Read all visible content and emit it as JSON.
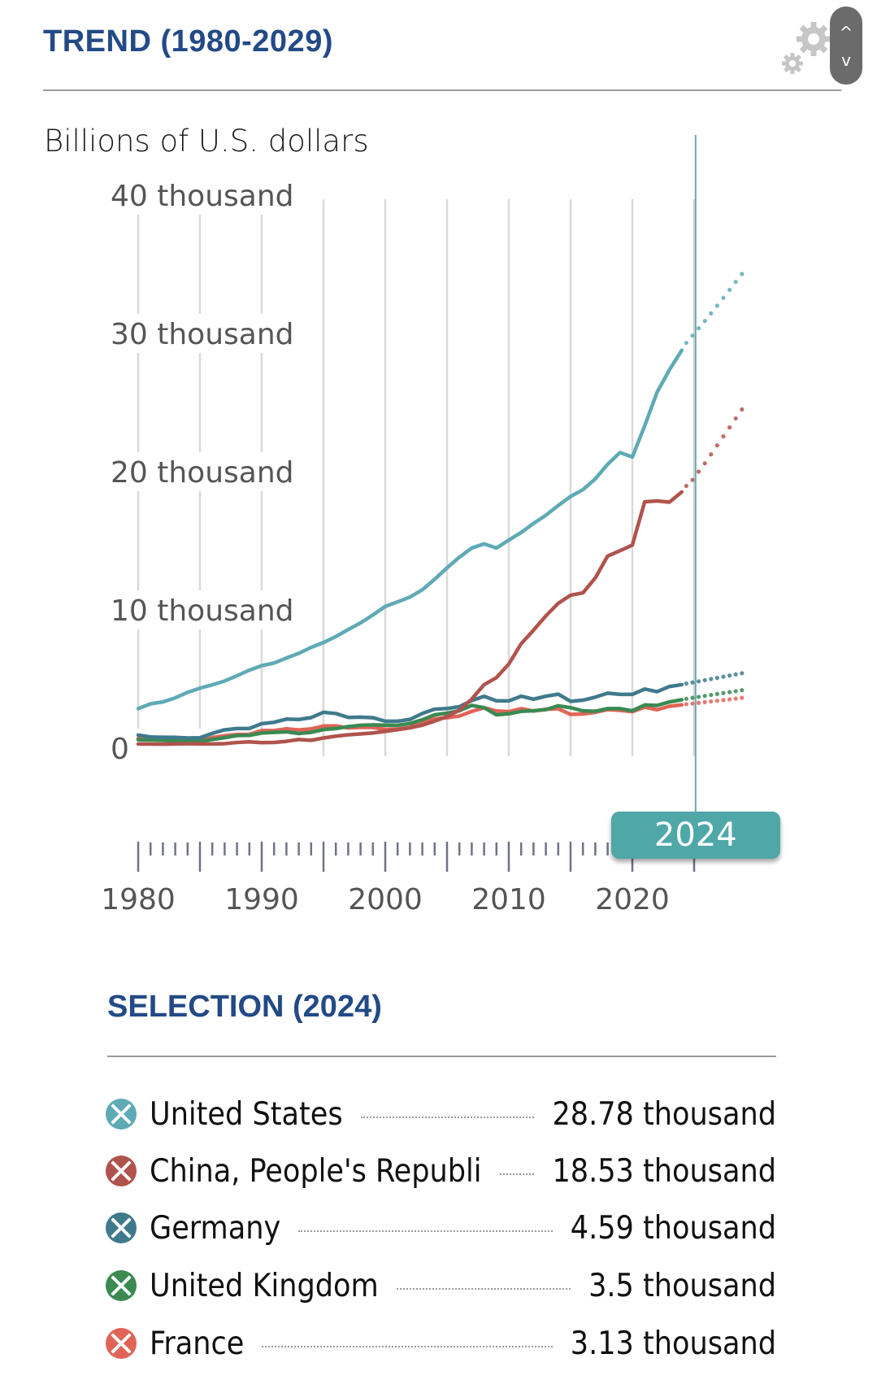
{
  "header": {
    "title": "TREND (1980-2029)",
    "settings_icon": "gears-icon",
    "scroll_up_icon": "chevron-up-icon",
    "scroll_down_icon": "chevron-down-icon",
    "scroll_up_glyph": "^",
    "scroll_down_glyph": "v"
  },
  "chart_data": {
    "type": "line",
    "title": "TREND (1980-2029)",
    "ylabel": "Billions of U.S. dollars",
    "xlabel": "",
    "ylim": [
      0,
      40000
    ],
    "xlim": [
      1980,
      2029
    ],
    "y_ticks": [
      {
        "value": 0,
        "label": "0"
      },
      {
        "value": 10000,
        "label": "10 thousand"
      },
      {
        "value": 20000,
        "label": "20 thousand"
      },
      {
        "value": 30000,
        "label": "30 thousand"
      },
      {
        "value": 40000,
        "label": "40 thousand"
      }
    ],
    "x_ticks": [
      {
        "value": 1980,
        "label": "1980"
      },
      {
        "value": 1990,
        "label": "1990"
      },
      {
        "value": 2000,
        "label": "2000"
      },
      {
        "value": 2010,
        "label": "2010"
      },
      {
        "value": 2020,
        "label": "2020"
      }
    ],
    "grid": "vertical",
    "selected_year": 2024,
    "selected_year_label": "2024",
    "projection_start": 2024,
    "x": [
      1980,
      1981,
      1982,
      1983,
      1984,
      1985,
      1986,
      1987,
      1988,
      1989,
      1990,
      1991,
      1992,
      1993,
      1994,
      1995,
      1996,
      1997,
      1998,
      1999,
      2000,
      2001,
      2002,
      2003,
      2004,
      2005,
      2006,
      2007,
      2008,
      2009,
      2010,
      2011,
      2012,
      2013,
      2014,
      2015,
      2016,
      2017,
      2018,
      2019,
      2020,
      2021,
      2022,
      2023,
      2024,
      2025,
      2026,
      2027,
      2028,
      2029
    ],
    "series": [
      {
        "name": "United States",
        "color": "#5eaab5",
        "values": [
          2857,
          3207,
          3344,
          3634,
          4037,
          4339,
          4580,
          4855,
          5236,
          5642,
          5963,
          6158,
          6520,
          6859,
          7287,
          7640,
          8073,
          8578,
          9063,
          9631,
          10251,
          10582,
          10929,
          11457,
          12217,
          13039,
          13816,
          14474,
          14770,
          14478,
          15049,
          15600,
          16254,
          16843,
          17551,
          18206,
          18695,
          19477,
          20533,
          21381,
          21060,
          23315,
          25744,
          27361,
          28781,
          29840,
          30900,
          32000,
          33150,
          34300
        ]
      },
      {
        "name": "China, People's Republic",
        "color": "#b0534d",
        "values": [
          303,
          294,
          285,
          300,
          314,
          310,
          301,
          327,
          408,
          456,
          396,
          414,
          495,
          623,
          566,
          736,
          867,
          965,
          1030,
          1094,
          1211,
          1339,
          1471,
          1660,
          1955,
          2286,
          2752,
          3550,
          4594,
          5101,
          6087,
          7552,
          8532,
          9570,
          10475,
          11062,
          11233,
          12310,
          13895,
          14280,
          14688,
          17820,
          17880,
          17795,
          18533,
          19400,
          20600,
          21900,
          23200,
          24500
        ]
      },
      {
        "name": "Germany",
        "color": "#3f7a8c",
        "values": [
          946,
          807,
          786,
          780,
          735,
          751,
          1069,
          1326,
          1420,
          1421,
          1772,
          1869,
          2101,
          2073,
          2208,
          2592,
          2504,
          2218,
          2243,
          2200,
          1949,
          1950,
          2079,
          2506,
          2820,
          2865,
          3002,
          3440,
          3750,
          3418,
          3417,
          3758,
          3544,
          3753,
          3905,
          3383,
          3469,
          3690,
          3977,
          3889,
          3887,
          4278,
          4082,
          4457,
          4591,
          4750,
          4920,
          5080,
          5250,
          5420
        ]
      },
      {
        "name": "United Kingdom",
        "color": "#3a8a52",
        "values": [
          603,
          586,
          563,
          517,
          491,
          512,
          621,
          759,
          911,
          926,
          1093,
          1142,
          1180,
          1061,
          1141,
          1345,
          1420,
          1560,
          1653,
          1687,
          1665,
          1650,
          1782,
          2054,
          2414,
          2533,
          2707,
          3094,
          2929,
          2411,
          2486,
          2659,
          2705,
          2786,
          3064,
          2928,
          2695,
          2666,
          2860,
          2857,
          2704,
          3123,
          3088,
          3340,
          3500,
          3640,
          3780,
          3920,
          4050,
          4190
        ]
      },
      {
        "name": "France",
        "color": "#e06457",
        "values": [
          700,
          625,
          590,
          560,
          535,
          557,
          765,
          900,
          985,
          1000,
          1270,
          1270,
          1400,
          1320,
          1390,
          1600,
          1610,
          1460,
          1500,
          1500,
          1360,
          1380,
          1500,
          1850,
          2120,
          2200,
          2320,
          2660,
          2920,
          2690,
          2640,
          2860,
          2680,
          2810,
          2850,
          2440,
          2470,
          2590,
          2790,
          2730,
          2640,
          2960,
          2780,
          3030,
          3130,
          3230,
          3330,
          3430,
          3530,
          3640
        ]
      }
    ]
  },
  "selection": {
    "title": "SELECTION (2024)",
    "rows": [
      {
        "name": "United States",
        "value": "28.78 thousand",
        "color": "#5eaab5",
        "icon": "remove-x-icon"
      },
      {
        "name": "China, People's Republi",
        "value": "18.53 thousand",
        "color": "#b0534d",
        "icon": "remove-x-icon"
      },
      {
        "name": "Germany",
        "value": "4.59 thousand",
        "color": "#3f7a8c",
        "icon": "remove-x-icon"
      },
      {
        "name": "United Kingdom",
        "value": "3.5 thousand",
        "color": "#3a8a52",
        "icon": "remove-x-icon"
      },
      {
        "name": "France",
        "value": "3.13 thousand",
        "color": "#e06457",
        "icon": "remove-x-icon"
      }
    ]
  },
  "colors": {
    "title": "#234a86",
    "grid": "#d9d9d9",
    "marker": "#4fa7a8",
    "axis_text": "#555555",
    "tick": "#6f7385"
  }
}
